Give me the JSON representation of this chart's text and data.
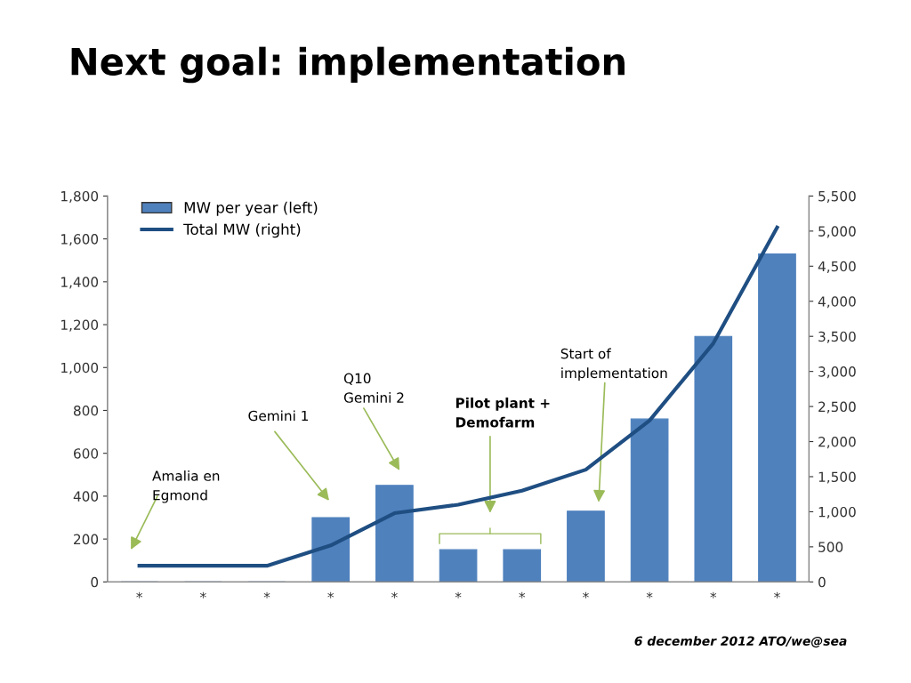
{
  "chart_data": {
    "type": "bar",
    "title": "Next goal: implementation",
    "categories": [
      "*",
      "*",
      "*",
      "*",
      "*",
      "*",
      "*",
      "*",
      "*",
      "*",
      "*"
    ],
    "series": [
      {
        "name": "MW per year (left)",
        "color": "#4f81bd",
        "values": [
          0,
          0,
          0,
          300,
          450,
          150,
          150,
          330,
          760,
          1145,
          1530
        ]
      },
      {
        "name": "Total MW (right)",
        "type": "line",
        "axis": "y2",
        "color": "#1f4e82",
        "values": [
          230,
          230,
          230,
          520,
          980,
          1100,
          1300,
          1600,
          2300,
          3400,
          5050
        ]
      }
    ],
    "ylim": [
      0,
      1800
    ],
    "yticks": [
      0,
      200,
      400,
      600,
      800,
      {
        "value": 1000,
        "label": "1,000"
      },
      {
        "value": 1200,
        "label": "1,200"
      },
      {
        "value": 1400,
        "label": "1,400"
      },
      {
        "value": 1600,
        "label": "1,600"
      },
      {
        "value": 1800,
        "label": "1,800"
      }
    ],
    "y2lim": [
      0,
      5500
    ],
    "y2ticks": [
      0,
      500,
      {
        "value": 1000,
        "label": "1,000"
      },
      {
        "value": 1500,
        "label": "1,500"
      },
      {
        "value": 2000,
        "label": "2,000"
      },
      {
        "value": 2500,
        "label": "2,500"
      },
      {
        "value": 3000,
        "label": "3,000"
      },
      {
        "value": 3500,
        "label": "3,500"
      },
      {
        "value": 4000,
        "label": "4,000"
      },
      {
        "value": 4500,
        "label": "4,500"
      },
      {
        "value": 5000,
        "label": "5,000"
      },
      {
        "value": 5500,
        "label": "5,500"
      }
    ],
    "legend": "top left",
    "grid": false,
    "annotations": [
      "Amalia en\nEgmond",
      "Gemini 1",
      "Q10\nGemini 2",
      "Pilot plant +\nDemofarm",
      "Start of\nimplementation",
      "6 december 2012 ATO/we@sea"
    ]
  }
}
